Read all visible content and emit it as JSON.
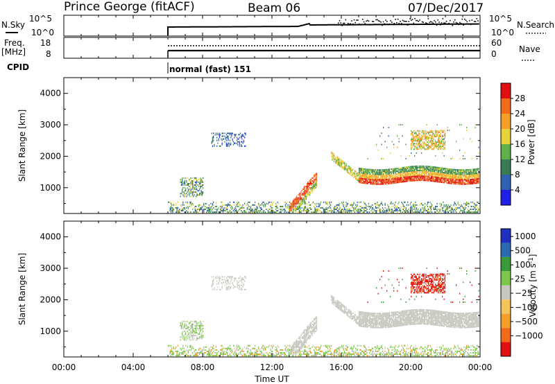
{
  "header": {
    "station": "Prince George (fitACF)",
    "beam": "Beam 06",
    "date": "07/Dec/2017"
  },
  "noise_panel": {
    "left_label": "N.Sky",
    "left_ticks": [
      "10^5",
      "10^0"
    ],
    "right_label": "N.Search",
    "right_ticks": [
      "10^5",
      "10^0"
    ]
  },
  "freq_panel": {
    "left_label_line1": "Freq.",
    "left_label_line2": "[MHz]",
    "left_ticks": [
      "18",
      "8"
    ],
    "right_label": "Nave",
    "right_ticks": [
      "60",
      "0"
    ]
  },
  "cpid": {
    "label": "CPID",
    "mode_text": "normal (fast) 151"
  },
  "colors": {
    "power_scale": [
      "#1f1fe6",
      "#3060b0",
      "#3a7a55",
      "#5fb04a",
      "#e6d33a",
      "#f2a02a",
      "#f26a1a",
      "#e01010"
    ],
    "velocity_scale": [
      "#e01010",
      "#f26a1a",
      "#f2a02a",
      "#f2c45a",
      "#c8c8c0",
      "#7cc84a",
      "#3a9a3a",
      "#2a6ab0",
      "#1f2fc0"
    ]
  },
  "chart_data": [
    {
      "type": "heatmap",
      "title": "",
      "ylabel": "Slant Range [km]",
      "xlabel": "",
      "xlim": [
        "00:00",
        "24:00"
      ],
      "ylim": [
        180,
        4500
      ],
      "xticks": [
        "00:00",
        "04:00",
        "08:00",
        "12:00",
        "16:00",
        "20:00",
        "00:00"
      ],
      "yticks": [
        1000,
        2000,
        3000,
        4000
      ],
      "colorbar": {
        "label": "Power [dB]",
        "ticks": [
          "4",
          "8",
          "12",
          "16",
          "20",
          "24",
          "28"
        ],
        "range": [
          0,
          30
        ]
      },
      "data_start": "06:00",
      "features": [
        {
          "name": "near-range echoes",
          "time": [
            "06:00",
            "24:00"
          ],
          "range_km": [
            180,
            500
          ],
          "power_db": [
            4,
            28
          ]
        },
        {
          "name": "rising band",
          "time": [
            "13:00",
            "14:30"
          ],
          "range_km": [
            300,
            1300
          ],
          "power_db": [
            10,
            28
          ]
        },
        {
          "name": "descending band",
          "time": [
            "15:30",
            "17:00"
          ],
          "range_km": [
            2000,
            1200
          ],
          "power_db": [
            12,
            20
          ]
        },
        {
          "name": "main layer",
          "time": [
            "17:00",
            "24:00"
          ],
          "range_km": [
            1200,
            1500
          ],
          "power_db": [
            16,
            28
          ]
        },
        {
          "name": "upper patch",
          "time": [
            "20:00",
            "21:30"
          ],
          "range_km": [
            2400,
            2800
          ],
          "power_db": [
            12,
            24
          ]
        },
        {
          "name": "early patch",
          "time": [
            "06:45",
            "08:00"
          ],
          "range_km": [
            700,
            1300
          ],
          "power_db": [
            4,
            16
          ]
        },
        {
          "name": "scattered echoes",
          "time": [
            "08:30",
            "10:30"
          ],
          "range_km": [
            2300,
            2700
          ],
          "power_db": [
            4,
            8
          ]
        }
      ]
    },
    {
      "type": "heatmap",
      "title": "",
      "ylabel": "Slant Range [km]",
      "xlabel": "Time UT",
      "xlim": [
        "00:00",
        "24:00"
      ],
      "ylim": [
        180,
        4500
      ],
      "xticks": [
        "00:00",
        "04:00",
        "08:00",
        "12:00",
        "16:00",
        "20:00",
        "00:00"
      ],
      "yticks": [
        1000,
        2000,
        3000,
        4000
      ],
      "colorbar": {
        "label": "Velocity [m s^-1]",
        "ticks": [
          "1000",
          "500",
          "100",
          "25",
          "−25",
          "−100",
          "−500",
          "−1000"
        ],
        "range": [
          -1000,
          1000
        ]
      },
      "data_start": "06:00",
      "features": [
        {
          "name": "ground scatter near range",
          "time": [
            "06:00",
            "24:00"
          ],
          "range_km": [
            180,
            500
          ],
          "velocity": [
            -25,
            100
          ]
        },
        {
          "name": "rising band",
          "time": [
            "13:00",
            "14:30"
          ],
          "range_km": [
            300,
            1300
          ],
          "velocity": [
            -25,
            25
          ]
        },
        {
          "name": "main layer",
          "time": [
            "15:30",
            "24:00"
          ],
          "range_km": [
            1200,
            2000
          ],
          "velocity": [
            -25,
            25
          ]
        },
        {
          "name": "upper patch",
          "time": [
            "20:00",
            "22:00"
          ],
          "range_km": [
            2200,
            2700
          ],
          "velocity": [
            -1000,
            -100
          ]
        },
        {
          "name": "scattered echoes",
          "time": [
            "08:30",
            "10:30"
          ],
          "range_km": [
            2300,
            2700
          ],
          "velocity": [
            -25,
            25
          ]
        }
      ]
    }
  ]
}
